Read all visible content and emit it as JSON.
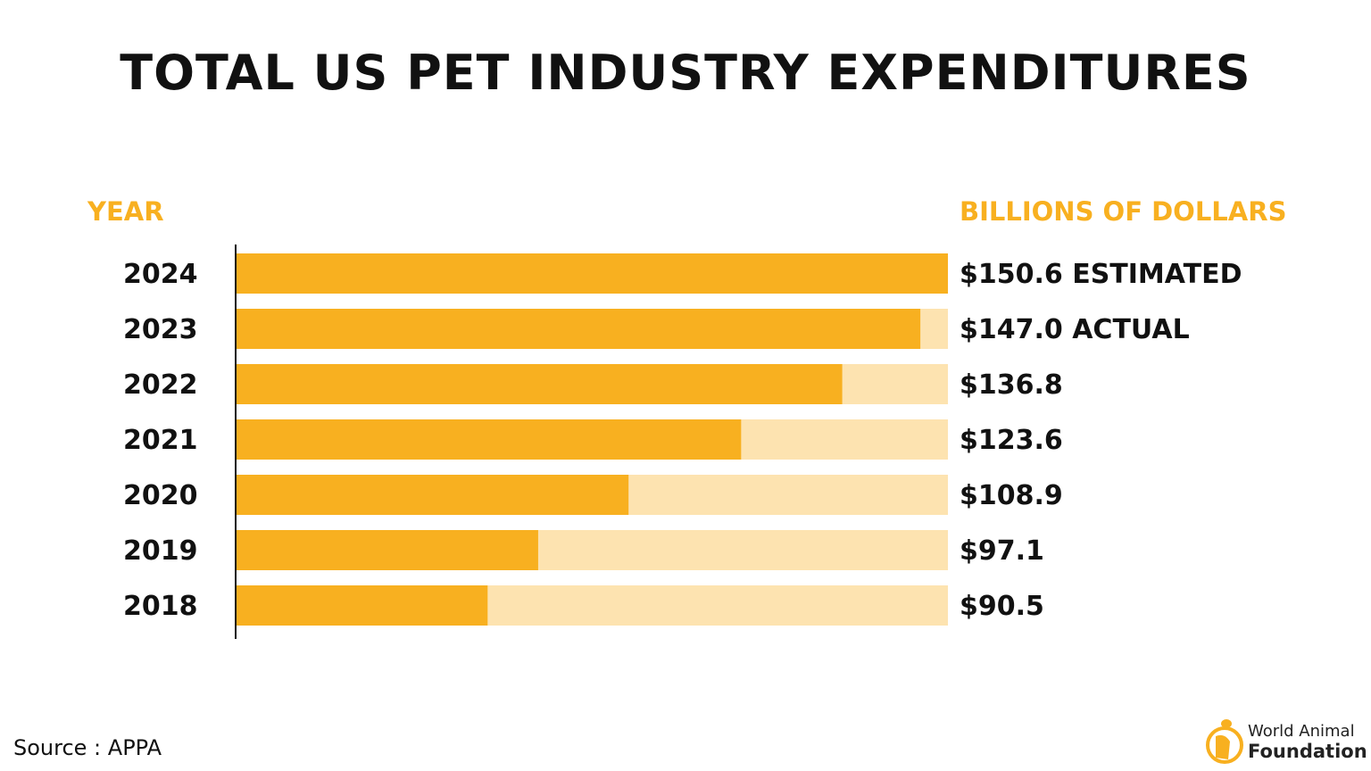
{
  "chart_data": {
    "type": "bar",
    "orientation": "horizontal",
    "title": "TOTAL US PET INDUSTRY EXPENDITURES",
    "ylabel": "YEAR",
    "xlabel": "BILLIONS OF DOLLARS",
    "categories": [
      "2024",
      "2023",
      "2022",
      "2021",
      "2020",
      "2019",
      "2018"
    ],
    "values": [
      150.6,
      147.0,
      136.8,
      123.6,
      108.9,
      97.1,
      90.5
    ],
    "value_labels": [
      "$150.6 ESTIMATED",
      "$147.0 ACTUAL",
      "$136.8",
      "$123.6",
      "$108.9",
      "$97.1",
      "$90.5"
    ],
    "xlim": [
      57.6,
      150.6
    ],
    "grid": false,
    "colors": {
      "bar": "#F8B020",
      "track": "#FDE3B0",
      "header": "#F8B020",
      "text": "#111111"
    }
  },
  "footer": {
    "source": "Source : APPA"
  },
  "logo": {
    "line1": "World Animal",
    "line2": "Foundation",
    "color": "#F8B020"
  }
}
